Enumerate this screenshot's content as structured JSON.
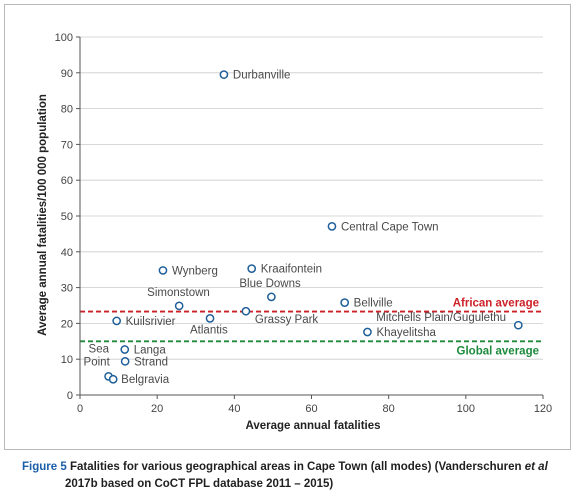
{
  "figure": {
    "label": "Figure 5",
    "caption_line1_a": "Fatalities for various geographical areas in Cape Town (all modes) (Vanderschuren ",
    "caption_et_al": "et al",
    "caption_line2": "2017b based on CoCT FPL database 2011 – 2015)"
  },
  "colors": {
    "point": "#1f5f99",
    "african": "#cc2127",
    "global": "#1d8a3c",
    "grid": "#cccccc",
    "axis": "#555555"
  },
  "chart_data": {
    "type": "scatter",
    "xlabel": "Average annual fatalities",
    "ylabel": "Average annual fatalities/100 000 population",
    "xlim": [
      0,
      120
    ],
    "ylim": [
      0,
      100
    ],
    "xticks": [
      0,
      20,
      40,
      60,
      80,
      100,
      120
    ],
    "yticks": [
      0,
      10,
      20,
      30,
      40,
      50,
      60,
      70,
      80,
      90,
      100
    ],
    "grid": "horizontal",
    "points": [
      {
        "label": "Durbanville",
        "x": 37.3,
        "y": 89.5
      },
      {
        "label": "Central Cape Town",
        "x": 65.3,
        "y": 47.1
      },
      {
        "label": "Wynberg",
        "x": 21.5,
        "y": 34.8
      },
      {
        "label": "Kraaifontein",
        "x": 44.5,
        "y": 35.3
      },
      {
        "label": "Blue Downs",
        "x": 49.6,
        "y": 27.4
      },
      {
        "label": "Simonstown",
        "x": 25.7,
        "y": 24.9
      },
      {
        "label": "Bellville",
        "x": 68.6,
        "y": 25.8
      },
      {
        "label": "Grassy Park",
        "x": 43.0,
        "y": 23.4
      },
      {
        "label": "Atlantis",
        "x": 33.7,
        "y": 21.4
      },
      {
        "label": "Kuilsrivier",
        "x": 9.5,
        "y": 20.7
      },
      {
        "label": "Mitchells Plain/Gugulethu",
        "x": 113.6,
        "y": 19.5
      },
      {
        "label": "Khayelitsha",
        "x": 74.5,
        "y": 17.6
      },
      {
        "label": "Langa",
        "x": 11.6,
        "y": 12.7
      },
      {
        "label": "Strand",
        "x": 11.7,
        "y": 9.4
      },
      {
        "label": "Sea",
        "x": 7.4,
        "y": 5.2
      },
      {
        "label": "Point",
        "x": 7.4,
        "y": 5.2
      },
      {
        "label": "Belgravia",
        "x": 8.6,
        "y": 4.4
      }
    ],
    "reference_lines": [
      {
        "label": "African average",
        "y": 23.3
      },
      {
        "label": "Global average",
        "y": 15.0
      }
    ]
  }
}
